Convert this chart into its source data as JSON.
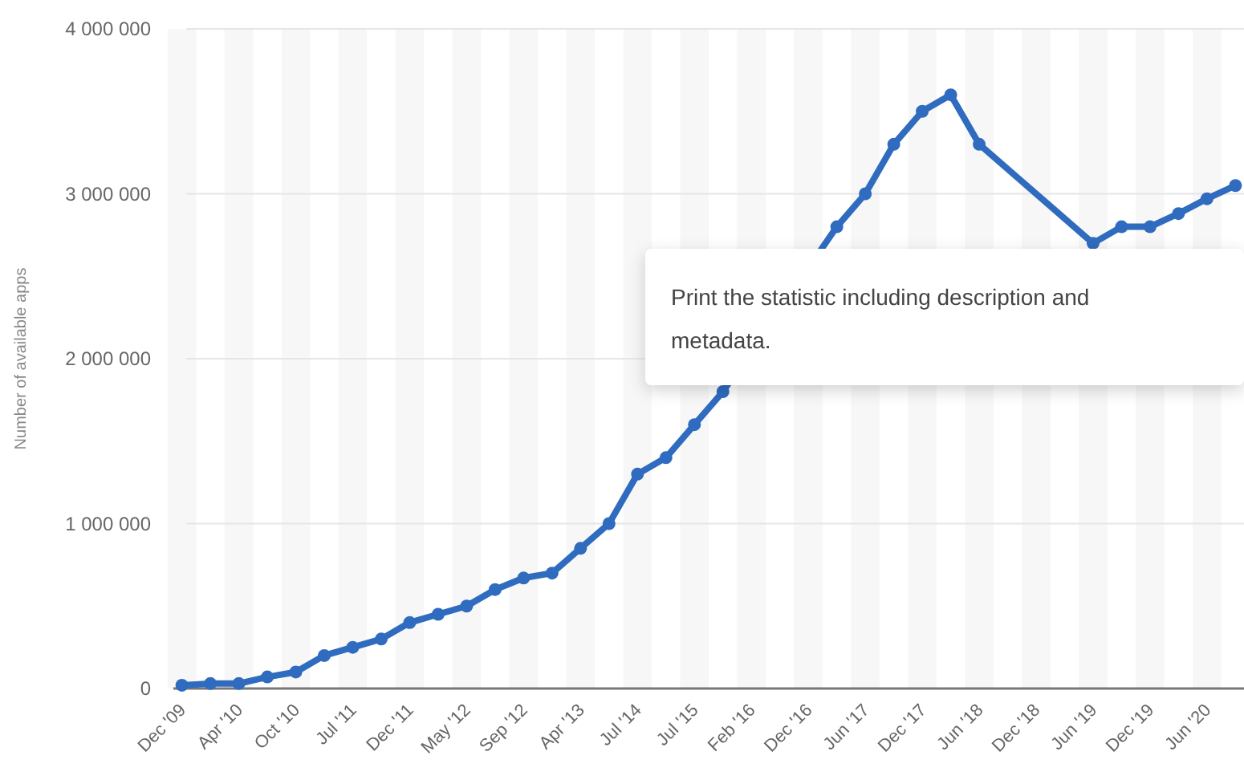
{
  "chart_data": {
    "type": "line",
    "ylabel": "Number of available apps",
    "categories": [
      "Dec '09",
      null,
      "Apr '10",
      null,
      "Oct '10",
      null,
      "Jul '11",
      null,
      "Dec '11",
      null,
      "May '12",
      null,
      "Sep '12",
      null,
      "Apr '13",
      null,
      "Jul '14",
      null,
      "Jul '15",
      null,
      "Feb '16",
      null,
      "Dec '16",
      null,
      "Jun '17",
      null,
      "Dec '17",
      null,
      "Jun '18",
      null,
      "Dec '18",
      null,
      "Jun '19",
      null,
      "Dec '19",
      null,
      "Jun '20",
      null
    ],
    "series": [
      {
        "color": "#2f6bbf",
        "values": [
          20000,
          30000,
          30000,
          70000,
          100000,
          200000,
          250000,
          300000,
          400000,
          450000,
          500000,
          600000,
          670000,
          700000,
          850000,
          1000000,
          1300000,
          1400000,
          1600000,
          1800000,
          null,
          null,
          null,
          2800000,
          3000000,
          3300000,
          3500000,
          3600000,
          3300000,
          null,
          null,
          null,
          2700000,
          2800000,
          2800000,
          2880000,
          2970000,
          3050000
        ]
      }
    ],
    "ylim": [
      0,
      4000000
    ],
    "yticks": [
      {
        "value": 0,
        "label": "0"
      },
      {
        "value": 1000000,
        "label": "1 000 000"
      },
      {
        "value": 2000000,
        "label": "2 000 000"
      },
      {
        "value": 3000000,
        "label": "3 000 000"
      },
      {
        "value": 4000000,
        "label": "4 000 000"
      }
    ],
    "grid": "y",
    "marker": "circle",
    "line_style": "solid",
    "annotations": [
      "Print the statistic including description and metadata."
    ]
  }
}
